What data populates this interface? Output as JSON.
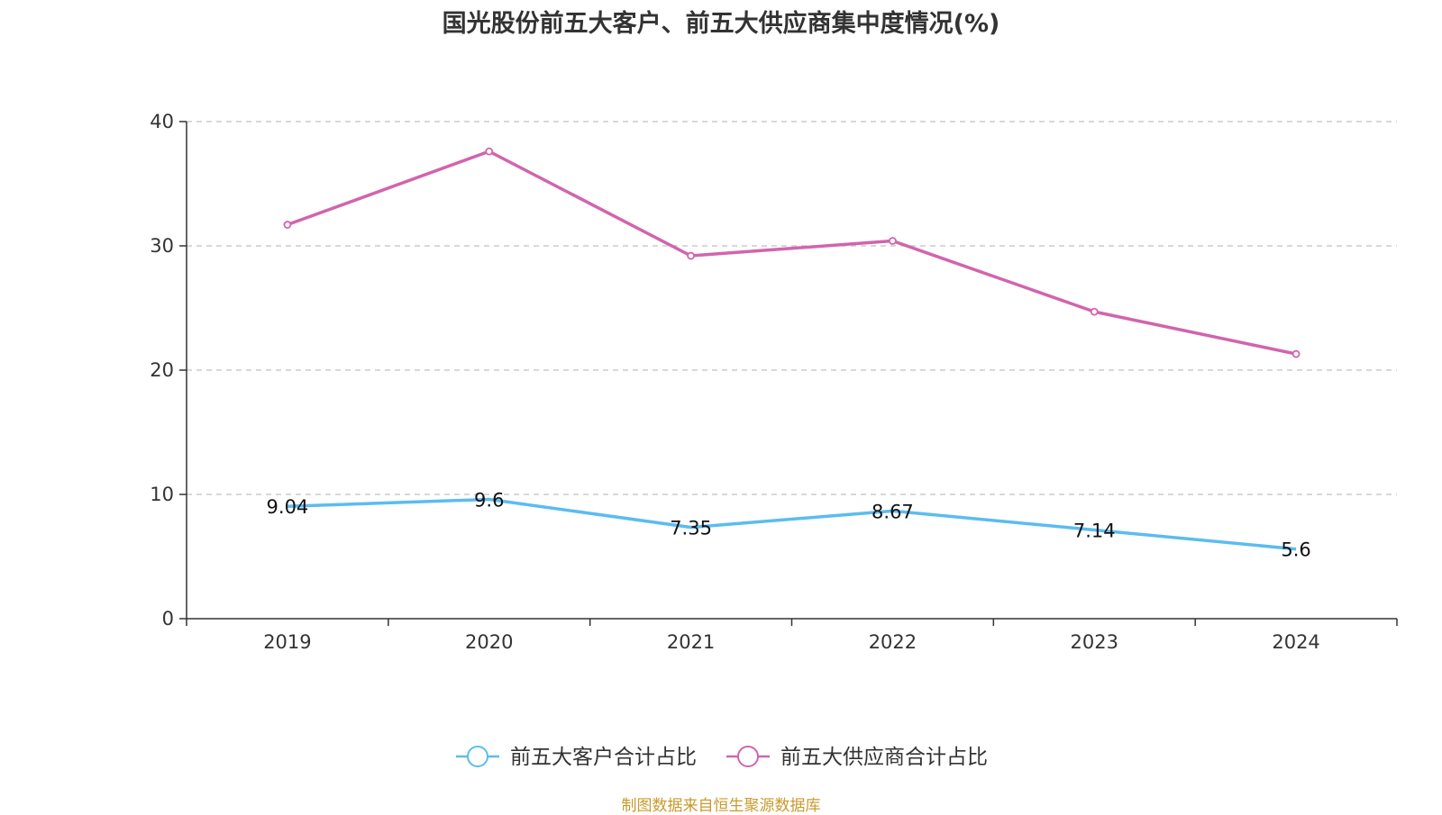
{
  "chart_data": {
    "type": "line",
    "title": "国光股份前五大客户、前五大供应商集中度情况(%)",
    "categories": [
      "2019",
      "2020",
      "2021",
      "2022",
      "2023",
      "2024"
    ],
    "series": [
      {
        "name": "前五大客户合计占比",
        "color": "#5bbcf0",
        "values": [
          9.04,
          9.6,
          7.35,
          8.67,
          7.14,
          5.6
        ],
        "show_labels": true
      },
      {
        "name": "前五大供应商合计占比",
        "color": "#d264ad",
        "values": [
          31.7,
          37.6,
          29.2,
          30.4,
          24.7,
          21.3
        ],
        "show_labels": false
      }
    ],
    "ylim": [
      0,
      40
    ],
    "yticks": [
      0,
      10,
      20,
      30,
      40
    ],
    "xlabel": "",
    "ylabel": "",
    "grid": true,
    "legend": "bottom-center"
  },
  "source_note": "制图数据来自恒生聚源数据库"
}
